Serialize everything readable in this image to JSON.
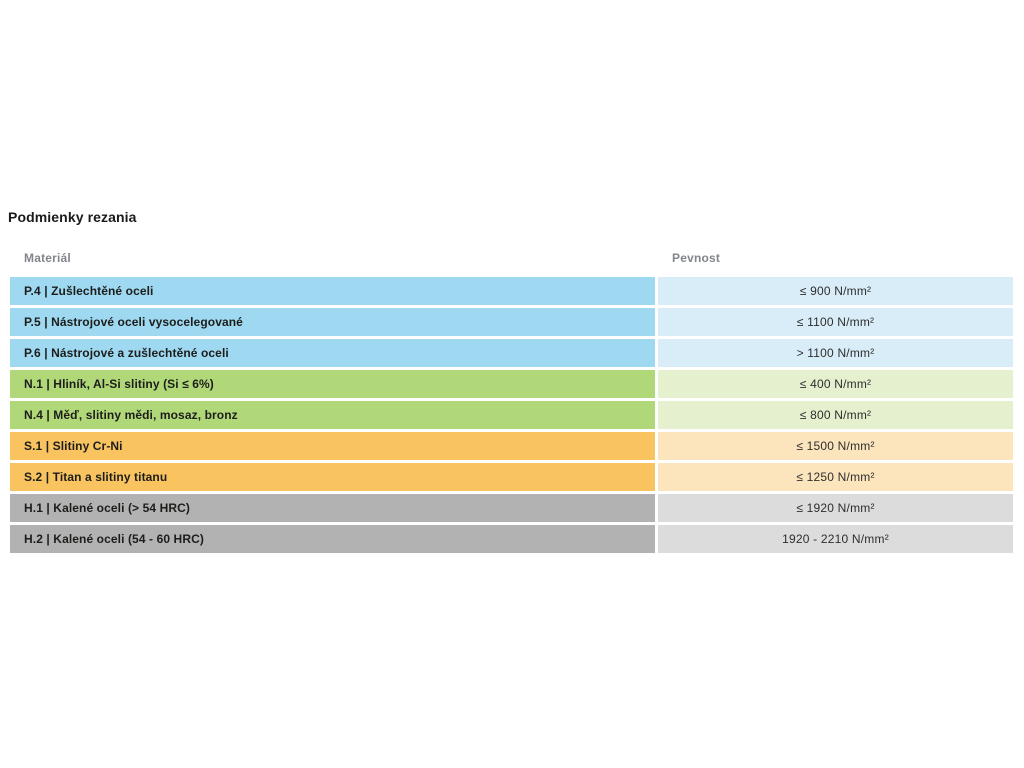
{
  "page": {
    "title": "Podmienky rezania"
  },
  "table": {
    "headers": {
      "material": "Materiál",
      "strength": "Pevnost"
    },
    "rows": [
      {
        "group": "P",
        "material": "P.4 | Zušlechtěné oceli",
        "strength": "≤ 900 N/mm²"
      },
      {
        "group": "P",
        "material": "P.5 | Nástrojové oceli vysocelegované",
        "strength": "≤ 1100 N/mm²"
      },
      {
        "group": "P",
        "material": "P.6 | Nástrojové a zušlechtěné oceli",
        "strength": "> 1100 N/mm²"
      },
      {
        "group": "N",
        "material": "N.1 | Hliník, Al-Si slitiny (Si ≤ 6%)",
        "strength": "≤ 400 N/mm²"
      },
      {
        "group": "N",
        "material": "N.4 | Měď, slitiny mědi, mosaz, bronz",
        "strength": "≤ 800 N/mm²"
      },
      {
        "group": "S",
        "material": "S.1 | Slitiny Cr-Ni",
        "strength": "≤ 1500 N/mm²"
      },
      {
        "group": "S",
        "material": "S.2 | Titan a slitiny titanu",
        "strength": "≤ 1250 N/mm²"
      },
      {
        "group": "H",
        "material": "H.1 | Kalené oceli (> 54 HRC)",
        "strength": "≤ 1920 N/mm²"
      },
      {
        "group": "H",
        "material": "H.2 | Kalené oceli (54 - 60 HRC)",
        "strength": "1920 - 2210 N/mm²"
      }
    ],
    "group_colors": {
      "P": {
        "left": "#9ED9F1",
        "right": "#D9EDF8"
      },
      "N": {
        "left": "#B0D778",
        "right": "#E5F0CE"
      },
      "S": {
        "left": "#F9C45F",
        "right": "#FCE5BC"
      },
      "H": {
        "left": "#B2B2B2",
        "right": "#DCDCDC"
      }
    }
  }
}
